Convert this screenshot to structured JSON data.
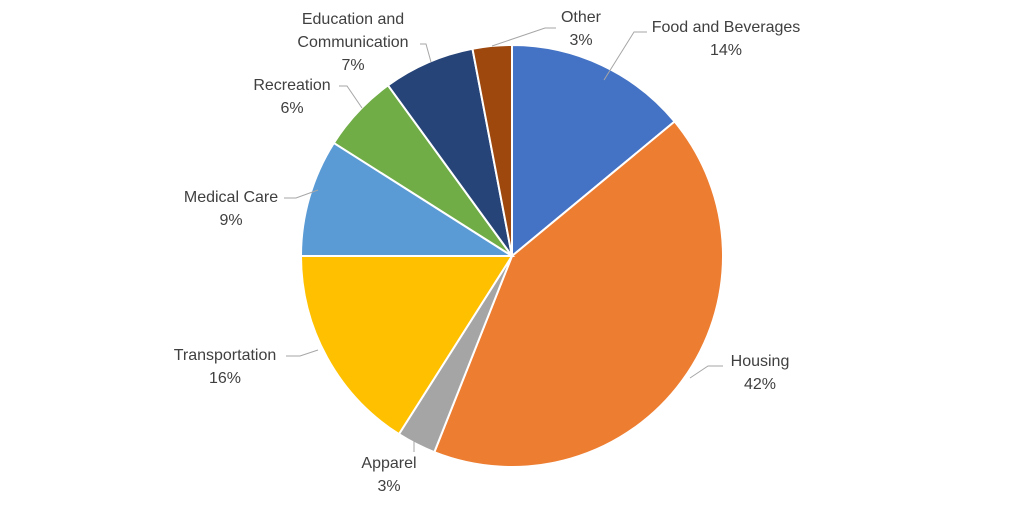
{
  "chart_data": {
    "type": "pie",
    "title": "",
    "slices": [
      {
        "label": "Food and Beverages",
        "value": 14,
        "value_label": "14%",
        "color": "#4472C4"
      },
      {
        "label": "Housing",
        "value": 42,
        "value_label": "42%",
        "color": "#ED7D31"
      },
      {
        "label": "Apparel",
        "value": 3,
        "value_label": "3%",
        "color": "#A5A5A5"
      },
      {
        "label": "Transportation",
        "value": 16,
        "value_label": "16%",
        "color": "#FFC000"
      },
      {
        "label": "Medical Care",
        "value": 9,
        "value_label": "9%",
        "color": "#5B9BD5"
      },
      {
        "label": "Recreation",
        "value": 6,
        "value_label": "6%",
        "color": "#70AD47"
      },
      {
        "label": "Education and Communication",
        "value": 7,
        "value_label": "7%",
        "color": "#264478"
      },
      {
        "label": "Other",
        "value": 3,
        "value_label": "3%",
        "color": "#9E480E"
      }
    ],
    "start_angle": "12 o'clock",
    "direction": "clockwise",
    "legend": "none",
    "data_labels": "outside-end with leader lines"
  }
}
